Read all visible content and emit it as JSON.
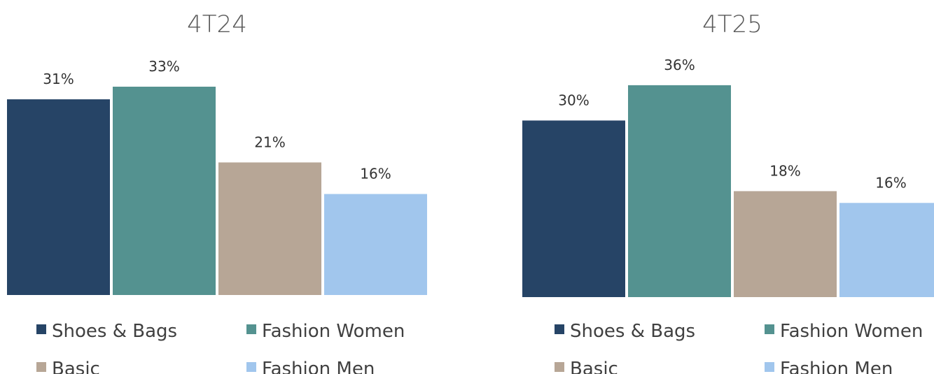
{
  "chart_data": [
    {
      "type": "bar",
      "title": "4T24",
      "categories": [
        "Shoes & Bags",
        "Fashion Women",
        "Basic",
        "Fashion Men"
      ],
      "values": [
        31,
        33,
        21,
        16
      ],
      "data_labels": [
        "31%",
        "33%",
        "21%",
        "16%"
      ],
      "ylim": [
        0,
        40
      ],
      "grid": false,
      "legend_position": "bottom",
      "colors": [
        "#264466",
        "#549290",
        "#b7a696",
        "#a1c6ed"
      ]
    },
    {
      "type": "bar",
      "title": "4T25",
      "categories": [
        "Shoes & Bags",
        "Fashion Women",
        "Basic",
        "Fashion Men"
      ],
      "values": [
        30,
        36,
        18,
        16
      ],
      "data_labels": [
        "30%",
        "36%",
        "18%",
        "16%"
      ],
      "ylim": [
        0,
        40
      ],
      "grid": false,
      "legend_position": "bottom",
      "colors": [
        "#264466",
        "#549290",
        "#b7a696",
        "#a1c6ed"
      ]
    }
  ],
  "legend": {
    "items": [
      {
        "label": "Shoes & Bags",
        "color": "#264466"
      },
      {
        "label": "Fashion Women",
        "color": "#549290"
      },
      {
        "label": "Basic",
        "color": "#b7a696"
      },
      {
        "label": "Fashion Men",
        "color": "#a1c6ed"
      }
    ]
  }
}
